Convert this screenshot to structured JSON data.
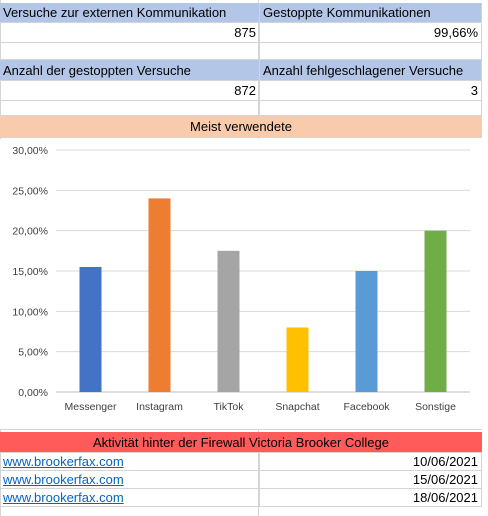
{
  "kpi1": {
    "label_a": "Versuche zur externen Kommunikation",
    "label_b": "Gestoppte Kommunikationen",
    "value_a": "875",
    "value_b": "99,66%"
  },
  "kpi2": {
    "label_a": "Anzahl der gestoppten Versuche",
    "label_b": "Anzahl fehlgeschlagener Versuche",
    "value_a": "872",
    "value_b": "3"
  },
  "chart_header": "Meist verwendete",
  "colors": {
    "header_blue": "#b4c6e7",
    "header_orange": "#f8cbad",
    "header_red": "#ff5b5b",
    "link": "#0563c1"
  },
  "chart_data": {
    "type": "bar",
    "title": "",
    "categories": [
      "Messenger",
      "Instagram",
      "TikTok",
      "Snapchat",
      "Facebook",
      "Sonstige"
    ],
    "values": [
      15.5,
      24.0,
      17.5,
      8.0,
      15.0,
      20.0
    ],
    "bar_colors": [
      "#4472c4",
      "#ed7d31",
      "#a5a5a5",
      "#ffc000",
      "#5b9bd5",
      "#70ad47"
    ],
    "ylim": [
      0,
      30
    ],
    "yticks": [
      "0,00%",
      "5,00%",
      "10,00%",
      "15,00%",
      "20,00%",
      "25,00%",
      "30,00%"
    ],
    "grid": true,
    "legend": "none"
  },
  "firewall": {
    "title": "Aktivität hinter der Firewall Victoria Brooker College",
    "rows": [
      {
        "url": "www.brookerfax.com",
        "date": "10/06/2021"
      },
      {
        "url": "www.brookerfax.com",
        "date": "15/06/2021"
      },
      {
        "url": "www.brookerfax.com",
        "date": "18/06/2021"
      }
    ]
  }
}
